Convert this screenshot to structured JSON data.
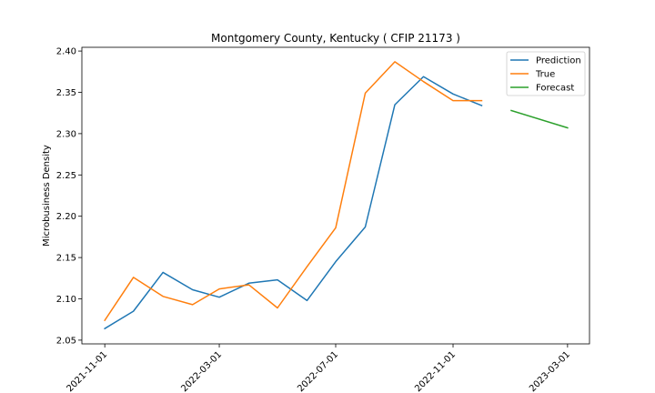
{
  "chart_data": {
    "type": "line",
    "title": "Montgomery County, Kentucky ( CFIP 21173 )",
    "xlabel": "",
    "ylabel": "Microbusiness Density",
    "x_axis_type": "date",
    "xlim": [
      "2021-10-08",
      "2023-03-24"
    ],
    "ylim": [
      2.0455,
      2.4045
    ],
    "x_ticks": [
      "2021-11-01",
      "2022-03-01",
      "2022-07-01",
      "2022-11-01",
      "2023-03-01"
    ],
    "y_ticks": [
      2.05,
      2.1,
      2.15,
      2.2,
      2.25,
      2.3,
      2.35,
      2.4
    ],
    "y_tick_labels": [
      "2.05",
      "2.10",
      "2.15",
      "2.20",
      "2.25",
      "2.30",
      "2.35",
      "2.40"
    ],
    "grid": false,
    "legend_position": "top-right",
    "series": [
      {
        "name": "Prediction",
        "color": "#1f77b4",
        "x": [
          "2021-11-01",
          "2021-12-01",
          "2022-01-01",
          "2022-02-01",
          "2022-03-01",
          "2022-04-01",
          "2022-05-01",
          "2022-06-01",
          "2022-07-01",
          "2022-08-01",
          "2022-09-01",
          "2022-10-01",
          "2022-11-01",
          "2022-12-01"
        ],
        "values": [
          2.064,
          2.085,
          2.132,
          2.111,
          2.102,
          2.119,
          2.123,
          2.098,
          2.145,
          2.187,
          2.335,
          2.369,
          2.348,
          2.334
        ]
      },
      {
        "name": "True",
        "color": "#ff7f0e",
        "x": [
          "2021-11-01",
          "2021-12-01",
          "2022-01-01",
          "2022-02-01",
          "2022-03-01",
          "2022-04-01",
          "2022-05-01",
          "2022-06-01",
          "2022-07-01",
          "2022-08-01",
          "2022-09-01",
          "2022-10-01",
          "2022-11-01",
          "2022-12-01"
        ],
        "values": [
          2.074,
          2.126,
          2.103,
          2.093,
          2.112,
          2.117,
          2.089,
          2.139,
          2.186,
          2.349,
          2.387,
          2.363,
          2.34,
          2.34
        ]
      },
      {
        "name": "Forecast",
        "color": "#2ca02c",
        "x": [
          "2023-01-01",
          "2023-03-01"
        ],
        "values": [
          2.328,
          2.307
        ]
      }
    ]
  }
}
